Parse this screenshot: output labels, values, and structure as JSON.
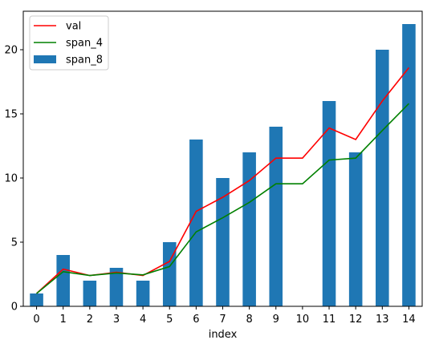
{
  "chart_data": {
    "type": "bar",
    "categories": [
      "0",
      "1",
      "2",
      "3",
      "4",
      "5",
      "6",
      "7",
      "8",
      "9",
      "10",
      "11",
      "12",
      "13",
      "14"
    ],
    "xlabel": "index",
    "ylabel": "",
    "title": "",
    "ylim": [
      0,
      23
    ],
    "yticks": [
      "0",
      "5",
      "10",
      "15",
      "20"
    ],
    "yticks_values": [
      0,
      5,
      10,
      15,
      20
    ],
    "legend_placement": "top-left",
    "grid": false,
    "series": [
      {
        "name": "val",
        "type": "line",
        "color": "#ff0000",
        "values": [
          1,
          2.9,
          2.4,
          2.65,
          2.4,
          3.5,
          7.4,
          8.5,
          9.8,
          11.55,
          11.55,
          13.9,
          13,
          16,
          18.6
        ]
      },
      {
        "name": "span_4",
        "type": "line",
        "color": "#008000",
        "values": [
          1,
          2.7,
          2.4,
          2.6,
          2.45,
          3.1,
          5.8,
          6.9,
          8.1,
          9.55,
          9.55,
          11.4,
          11.55,
          13.7,
          15.8
        ]
      },
      {
        "name": "span_8",
        "type": "bar",
        "color": "#1f77b4",
        "values": [
          1,
          4,
          2,
          3,
          2,
          5,
          13,
          10,
          12,
          14,
          0,
          16,
          12,
          20,
          22
        ]
      }
    ]
  }
}
